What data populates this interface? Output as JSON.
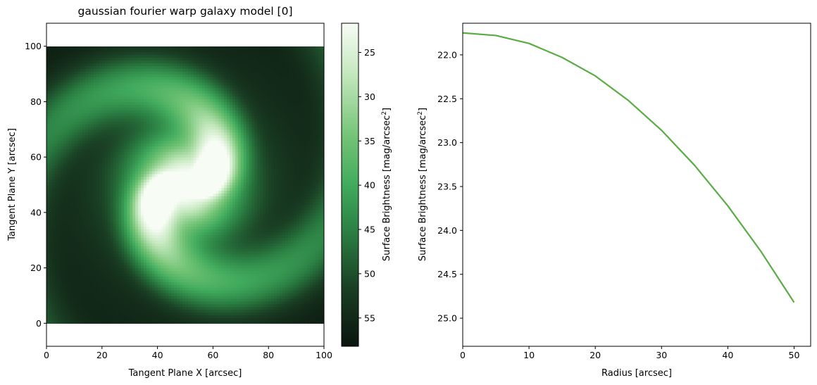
{
  "chart_data": [
    {
      "type": "heatmap",
      "title": "gaussian fourier warp galaxy model [0]",
      "xlabel": "Tangent Plane X [arcsec]",
      "ylabel": "Tangent Plane Y [arcsec]",
      "xlim": [
        0,
        100
      ],
      "ylim": [
        -8.3,
        108.3
      ],
      "image_extent": [
        0,
        100,
        0,
        100
      ],
      "xticks": [
        0,
        20,
        40,
        60,
        80,
        100
      ],
      "yticks": [
        0,
        20,
        40,
        60,
        80,
        100
      ],
      "colormap": "greens-reversed",
      "colors": {
        "bright": "#f7fcf5",
        "mid_bright": "#a1d99b",
        "mid": "#41ab5d",
        "mid_dark": "#2a7e42",
        "dark": "#0b150e"
      },
      "colorbar": {
        "label_main": "Surface Brightness [mag/arcsec",
        "label_sup": "2",
        "label_end": "]",
        "range": [
          21.7,
          58.2
        ],
        "inverted": true,
        "ticks": [
          25,
          30,
          35,
          40,
          45,
          50,
          55
        ]
      },
      "model_description_components": {
        "center": [
          50,
          50
        ],
        "arms": 2,
        "warp": "fourier"
      }
    },
    {
      "type": "line",
      "title": "",
      "xlabel": "Radius [arcsec]",
      "ylabel_main": "Surface Brightness [mag/arcsec",
      "ylabel_sup": "2",
      "ylabel_end": "]",
      "xlim": [
        0,
        52.5
      ],
      "ylim": [
        25.32,
        21.64
      ],
      "y_inverted": true,
      "xticks": [
        0,
        10,
        20,
        30,
        40,
        50
      ],
      "yticks": [
        "22.0",
        "22.5",
        "23.0",
        "23.5",
        "24.0",
        "24.5",
        "25.0"
      ],
      "series": [
        {
          "color": "#5aac44",
          "x": [
            0,
            5,
            10,
            15,
            20,
            25,
            30,
            35,
            40,
            45,
            50
          ],
          "y": [
            21.75,
            21.78,
            21.87,
            22.03,
            22.24,
            22.52,
            22.86,
            23.26,
            23.72,
            24.24,
            24.82
          ]
        }
      ]
    }
  ]
}
